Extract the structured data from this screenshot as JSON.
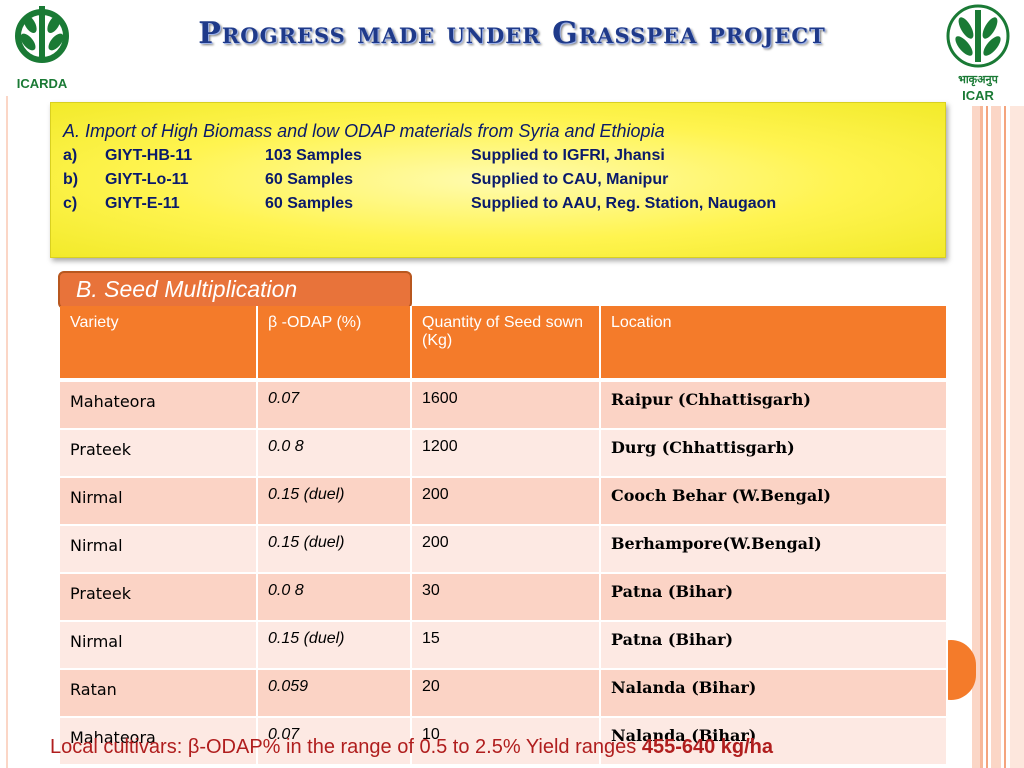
{
  "title": "Progress made under Grasspea project",
  "logos": {
    "left": "ICARDA",
    "right_hindi": "भाकृअनुप",
    "right": "ICAR"
  },
  "section_a": {
    "heading": "A. Import of High Biomass and low ODAP materials from Syria and Ethiopia",
    "rows": [
      {
        "idx": "a)",
        "material": "GIYT-HB-11",
        "samples": "103 Samples",
        "supplied": "Supplied to IGFRI, Jhansi"
      },
      {
        "idx": "b)",
        "material": "GIYT-Lo-11",
        "samples": "60 Samples",
        "supplied": "Supplied to CAU, Manipur"
      },
      {
        "idx": "c)",
        "material": "GIYT-E-11",
        "samples": "60 Samples",
        "supplied": "Supplied to AAU, Reg. Station, Naugaon"
      }
    ]
  },
  "section_b": {
    "label": "B. Seed Multiplication",
    "headers": [
      "Variety",
      "β -ODAP (%)",
      "Quantity of Seed sown (Kg)",
      "Location"
    ],
    "rows": [
      {
        "variety": "Mahateora",
        "odap": "0.07",
        "qty": "1600",
        "location": "Raipur (Chhattisgarh)"
      },
      {
        "variety": "Prateek",
        "odap": "0.0 8",
        "qty": "1200",
        "location": "Durg (Chhattisgarh)"
      },
      {
        "variety": "Nirmal",
        "odap": "0.15 (duel)",
        "qty": "200",
        "location": "Cooch Behar (W.Bengal)"
      },
      {
        "variety": "Nirmal",
        "odap": "0.15 (duel)",
        "qty": "200",
        "location": "Berhampore(W.Bengal)"
      },
      {
        "variety": "Prateek",
        "odap": "0.0 8",
        "qty": "30",
        "location": "Patna (Bihar)"
      },
      {
        "variety": "Nirmal",
        "odap": "0.15 (duel)",
        "qty": "15",
        "location": "Patna (Bihar)"
      },
      {
        "variety": "Ratan",
        "odap": "0.059",
        "qty": "20",
        "location": "Nalanda (Bihar)"
      },
      {
        "variety": "Mahateora",
        "odap": "0.07",
        "qty": "10",
        "location": "Nalanda (Bihar)"
      }
    ]
  },
  "footer": {
    "text": "Local cultivars: β-ODAP% in the range of 0.5 to 2.5% Yield ranges ",
    "highlight": "455-640 kg/ha"
  },
  "colors": {
    "accent": "#f47b2a",
    "title": "#1f3a8a",
    "highlight_box": "#fff450",
    "footer": "#b01e1e"
  }
}
